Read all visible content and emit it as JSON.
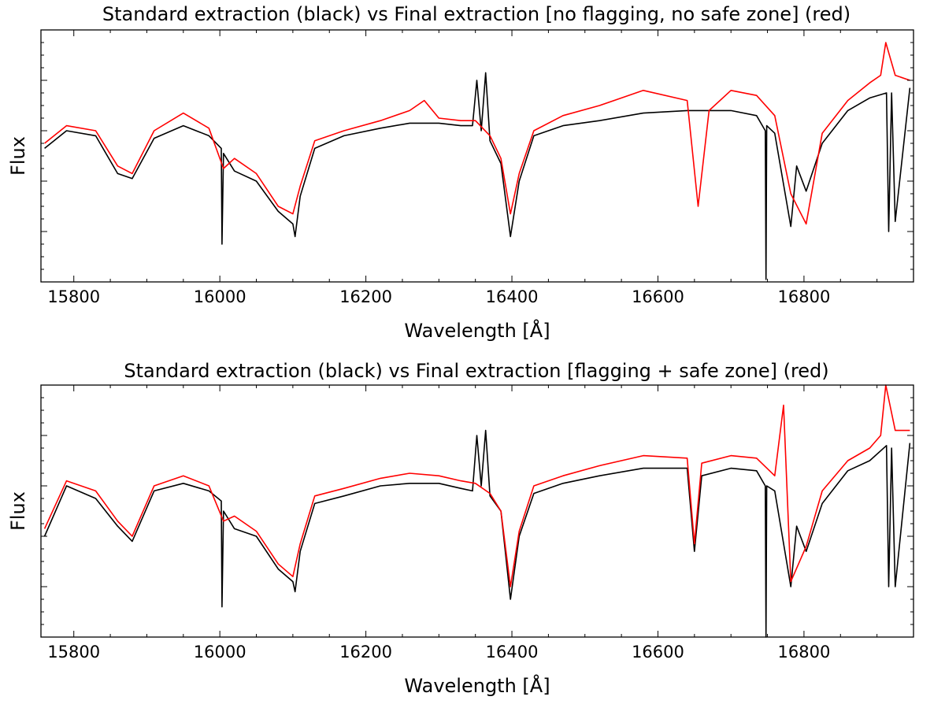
{
  "chart_data": [
    {
      "type": "line",
      "title": "Standard extraction (black) vs Final extraction [no flagging, no safe zone] (red)",
      "xlabel": "Wavelength [Å]",
      "ylabel": "Flux",
      "xlim": [
        15755,
        16950
      ],
      "ylim": [
        0,
        1
      ],
      "x_ticks": [
        15800,
        16000,
        16200,
        16400,
        16600,
        16800
      ],
      "x_tick_labels": [
        "15800",
        "16000",
        "16200",
        "16400",
        "16600",
        "16800"
      ],
      "y_tick_labels_shown": false,
      "grid": false,
      "series": [
        {
          "name": "Standard extraction",
          "color": "#000000",
          "x": [
            15760,
            15790,
            15830,
            15860,
            15880,
            15910,
            15950,
            15985,
            16002,
            16003,
            16005,
            16020,
            16050,
            16080,
            16100,
            16103,
            16110,
            16130,
            16170,
            16220,
            16260,
            16300,
            16330,
            16346,
            16352,
            16358,
            16364,
            16370,
            16385,
            16398,
            16410,
            16430,
            16470,
            16520,
            16580,
            16640,
            16700,
            16735,
            16747,
            16748,
            16749,
            16760,
            16782,
            16790,
            16803,
            16825,
            16860,
            16890,
            16913,
            16916,
            16920,
            16925,
            16945
          ],
          "y": [
            0.53,
            0.6,
            0.58,
            0.43,
            0.41,
            0.57,
            0.62,
            0.58,
            0.53,
            0.15,
            0.51,
            0.44,
            0.4,
            0.28,
            0.23,
            0.18,
            0.34,
            0.53,
            0.58,
            0.61,
            0.63,
            0.63,
            0.62,
            0.62,
            0.8,
            0.6,
            0.83,
            0.56,
            0.47,
            0.18,
            0.4,
            0.58,
            0.62,
            0.64,
            0.67,
            0.68,
            0.68,
            0.66,
            0.6,
            0.01,
            0.62,
            0.59,
            0.22,
            0.46,
            0.36,
            0.55,
            0.68,
            0.73,
            0.75,
            0.2,
            0.75,
            0.24,
            0.77
          ]
        },
        {
          "name": "Final extraction (no flagging, no safe zone)",
          "color": "#ff0000",
          "x": [
            15760,
            15790,
            15830,
            15860,
            15880,
            15910,
            15950,
            15985,
            16005,
            16020,
            16050,
            16080,
            16100,
            16110,
            16130,
            16170,
            16220,
            16260,
            16280,
            16300,
            16330,
            16350,
            16370,
            16385,
            16398,
            16410,
            16430,
            16470,
            16520,
            16580,
            16640,
            16655,
            16670,
            16700,
            16735,
            16760,
            16782,
            16803,
            16825,
            16860,
            16890,
            16905,
            16912,
            16925,
            16945
          ],
          "y": [
            0.55,
            0.62,
            0.6,
            0.46,
            0.43,
            0.6,
            0.67,
            0.61,
            0.45,
            0.49,
            0.43,
            0.3,
            0.27,
            0.38,
            0.56,
            0.6,
            0.64,
            0.68,
            0.72,
            0.65,
            0.64,
            0.64,
            0.58,
            0.49,
            0.27,
            0.43,
            0.6,
            0.66,
            0.7,
            0.76,
            0.72,
            0.3,
            0.68,
            0.76,
            0.74,
            0.66,
            0.35,
            0.23,
            0.59,
            0.72,
            0.79,
            0.82,
            0.95,
            0.82,
            0.8
          ]
        }
      ]
    },
    {
      "type": "line",
      "title": "Standard extraction (black) vs Final extraction [flagging + safe zone] (red)",
      "xlabel": "Wavelength [Å]",
      "ylabel": "Flux",
      "xlim": [
        15755,
        16950
      ],
      "ylim": [
        0,
        1
      ],
      "x_ticks": [
        15800,
        16000,
        16200,
        16400,
        16600,
        16800
      ],
      "x_tick_labels": [
        "15800",
        "16000",
        "16200",
        "16400",
        "16600",
        "16800"
      ],
      "y_tick_labels_shown": false,
      "grid": false,
      "series": [
        {
          "name": "Standard extraction",
          "color": "#000000",
          "x": [
            15760,
            15790,
            15830,
            15860,
            15880,
            15910,
            15950,
            15985,
            16002,
            16003,
            16005,
            16020,
            16050,
            16080,
            16100,
            16103,
            16110,
            16130,
            16170,
            16220,
            16260,
            16300,
            16330,
            16346,
            16352,
            16358,
            16364,
            16370,
            16385,
            16398,
            16410,
            16430,
            16470,
            16520,
            16580,
            16640,
            16650,
            16660,
            16700,
            16735,
            16747,
            16748,
            16749,
            16760,
            16782,
            16790,
            16803,
            16825,
            16860,
            16890,
            16913,
            16916,
            16920,
            16925,
            16945
          ],
          "y": [
            0.4,
            0.6,
            0.55,
            0.44,
            0.38,
            0.58,
            0.61,
            0.58,
            0.54,
            0.12,
            0.5,
            0.43,
            0.4,
            0.27,
            0.22,
            0.18,
            0.34,
            0.53,
            0.56,
            0.6,
            0.61,
            0.61,
            0.59,
            0.58,
            0.8,
            0.6,
            0.82,
            0.56,
            0.5,
            0.15,
            0.4,
            0.57,
            0.61,
            0.64,
            0.67,
            0.67,
            0.34,
            0.64,
            0.67,
            0.66,
            0.6,
            0.0,
            0.6,
            0.58,
            0.2,
            0.44,
            0.34,
            0.53,
            0.66,
            0.7,
            0.76,
            0.2,
            0.75,
            0.2,
            0.77
          ]
        },
        {
          "name": "Final extraction (flagging + safe zone)",
          "color": "#ff0000",
          "x": [
            15760,
            15790,
            15830,
            15860,
            15880,
            15910,
            15950,
            15985,
            16005,
            16020,
            16050,
            16080,
            16100,
            16110,
            16130,
            16170,
            16220,
            16260,
            16300,
            16330,
            16350,
            16370,
            16385,
            16398,
            16410,
            16430,
            16470,
            16520,
            16580,
            16640,
            16650,
            16660,
            16700,
            16735,
            16760,
            16772,
            16782,
            16803,
            16825,
            16860,
            16890,
            16905,
            16912,
            16925,
            16945
          ],
          "y": [
            0.43,
            0.62,
            0.58,
            0.46,
            0.4,
            0.6,
            0.64,
            0.6,
            0.46,
            0.48,
            0.42,
            0.29,
            0.24,
            0.37,
            0.56,
            0.59,
            0.63,
            0.65,
            0.64,
            0.62,
            0.61,
            0.57,
            0.5,
            0.2,
            0.42,
            0.6,
            0.64,
            0.68,
            0.72,
            0.71,
            0.37,
            0.69,
            0.72,
            0.71,
            0.64,
            0.92,
            0.22,
            0.36,
            0.58,
            0.7,
            0.75,
            0.8,
            1.0,
            0.82,
            0.82
          ]
        }
      ]
    }
  ]
}
